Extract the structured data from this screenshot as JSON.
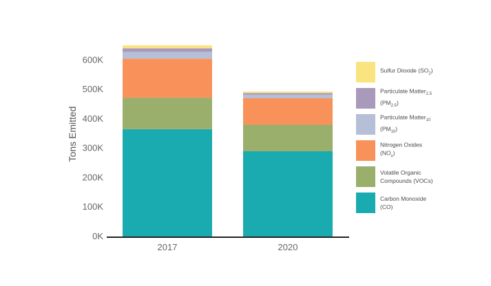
{
  "chart_data": {
    "type": "bar",
    "stacked": true,
    "categories": [
      "2017",
      "2020"
    ],
    "ylabel": "Tons Emitted",
    "xlabel": "",
    "ylim": [
      0,
      650000
    ],
    "yticks": [
      {
        "value": 0,
        "label": "0K"
      },
      {
        "value": 100000,
        "label": "100K"
      },
      {
        "value": 200000,
        "label": "200K"
      },
      {
        "value": 300000,
        "label": "300K"
      },
      {
        "value": 400000,
        "label": "400K"
      },
      {
        "value": 500000,
        "label": "500K"
      },
      {
        "value": 600000,
        "label": "600K"
      }
    ],
    "series": [
      {
        "name": "Carbon Monoxide (CO)",
        "color": "#1aabb1",
        "values": [
          365000,
          290000
        ]
      },
      {
        "name": "Volatile Organic Compounds (VOCs)",
        "color": "#9aaf6c",
        "values": [
          107000,
          90000
        ]
      },
      {
        "name": "Nitrogen Oxides (NOx)",
        "color": "#f8925a",
        "values": [
          133000,
          90000
        ]
      },
      {
        "name": "Particulate Matter10 (PM10)",
        "color": "#b5bfd7",
        "values": [
          23000,
          12000
        ]
      },
      {
        "name": "Particulate Matter2.5 (PM2.5)",
        "color": "#a999ba",
        "values": [
          12000,
          6000
        ]
      },
      {
        "name": "Sulfur Dioxide (SO2)",
        "color": "#f9e47f",
        "values": [
          10000,
          5000
        ]
      }
    ],
    "grid": false,
    "legend_position": "right"
  },
  "legend": [
    {
      "key": "so2",
      "color": "#f9e47f",
      "parts": [
        {
          "t": "Sulfur Dioxide (SO"
        },
        {
          "t": "2",
          "sub": true
        },
        {
          "t": ")"
        }
      ]
    },
    {
      "key": "pm25",
      "color": "#a999ba",
      "parts": [
        {
          "t": "Particulate Matter"
        },
        {
          "t": "2.5",
          "sub": true
        },
        {
          "br": true
        },
        {
          "t": "(PM"
        },
        {
          "t": "2.5",
          "sub": true
        },
        {
          "t": ")"
        }
      ]
    },
    {
      "key": "pm10",
      "color": "#b5bfd7",
      "parts": [
        {
          "t": "Particulate Matter"
        },
        {
          "t": "10",
          "sub": true
        },
        {
          "br": true
        },
        {
          "t": "(PM"
        },
        {
          "t": "10",
          "sub": true
        },
        {
          "t": ")"
        }
      ]
    },
    {
      "key": "nox",
      "color": "#f8925a",
      "parts": [
        {
          "t": "Nitrogen Oxides"
        },
        {
          "br": true
        },
        {
          "t": "(NO"
        },
        {
          "t": "x",
          "sub": true
        },
        {
          "t": ")"
        }
      ]
    },
    {
      "key": "voc",
      "color": "#9aaf6c",
      "parts": [
        {
          "t": "Volatile Organic"
        },
        {
          "br": true
        },
        {
          "t": "Compounds (VOCs)"
        }
      ]
    },
    {
      "key": "co",
      "color": "#1aabb1",
      "parts": [
        {
          "t": "Carbon Monoxide"
        },
        {
          "br": true
        },
        {
          "t": "(CO)"
        }
      ]
    }
  ]
}
